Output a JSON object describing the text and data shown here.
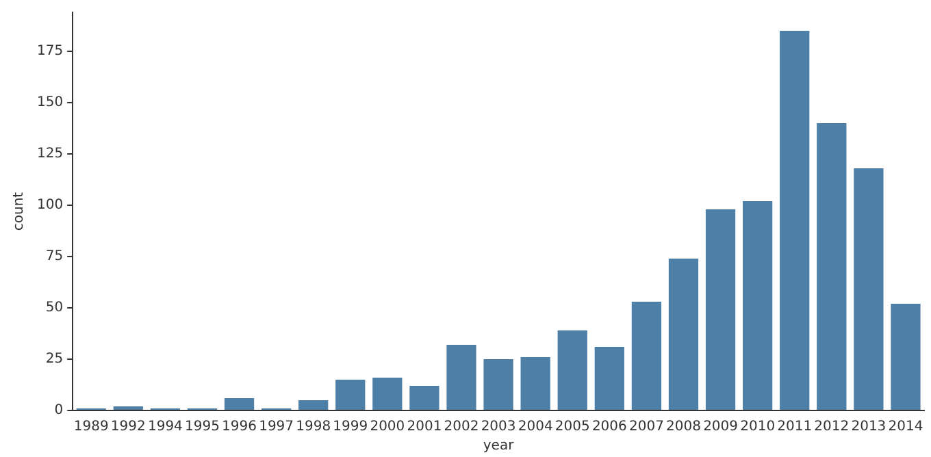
{
  "chart_data": {
    "type": "bar",
    "xlabel": "year",
    "ylabel": "count",
    "categories": [
      "1989",
      "1992",
      "1994",
      "1995",
      "1996",
      "1997",
      "1998",
      "1999",
      "2000",
      "2001",
      "2002",
      "2003",
      "2004",
      "2005",
      "2006",
      "2007",
      "2008",
      "2009",
      "2010",
      "2011",
      "2012",
      "2013",
      "2014"
    ],
    "values": [
      1,
      2,
      1,
      1,
      6,
      1,
      5,
      15,
      16,
      12,
      32,
      25,
      26,
      39,
      31,
      53,
      74,
      98,
      102,
      185,
      140,
      118,
      52
    ],
    "color": "#4e7fa7",
    "ylim": [
      0,
      194
    ],
    "yticks": [
      0,
      25,
      50,
      75,
      100,
      125,
      150,
      175
    ],
    "grid": false,
    "legend": false
  }
}
